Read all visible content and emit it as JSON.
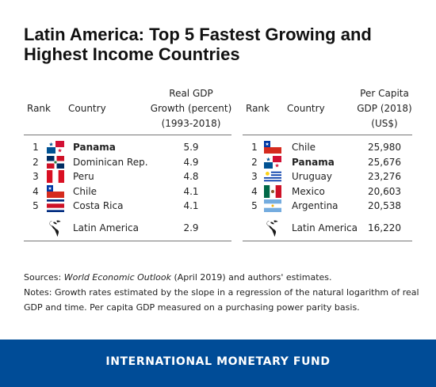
{
  "title": "Latin America: Top 5 Fastest Growing and Highest Income Countries",
  "left_table": {
    "headers": {
      "rank": "Rank",
      "country": "Country",
      "metric_lines": [
        "Real GDP",
        "Growth (percent)",
        "(1993-2018)"
      ]
    },
    "rows": [
      {
        "rank": "1",
        "country": "Panama",
        "value": "5.9",
        "flag": "panama-flag",
        "bold": true
      },
      {
        "rank": "2",
        "country": "Dominican Rep.",
        "value": "4.9",
        "flag": "dominican-republic-flag",
        "bold": false
      },
      {
        "rank": "3",
        "country": "Peru",
        "value": "4.8",
        "flag": "peru-flag",
        "bold": false
      },
      {
        "rank": "4",
        "country": "Chile",
        "value": "4.1",
        "flag": "chile-flag",
        "bold": false
      },
      {
        "rank": "5",
        "country": "Costa Rica",
        "value": "4.1",
        "flag": "costa-rica-flag",
        "bold": false
      }
    ],
    "aggregate": {
      "icon": "globe-americas-icon",
      "country": "Latin America",
      "value": "2.9"
    }
  },
  "right_table": {
    "headers": {
      "rank": "Rank",
      "country": "Country",
      "metric_lines": [
        "Per Capita",
        "GDP (2018)",
        "(US$)"
      ]
    },
    "rows": [
      {
        "rank": "1",
        "country": "Chile",
        "value": "25,980",
        "flag": "chile-flag",
        "bold": false
      },
      {
        "rank": "2",
        "country": "Panama",
        "value": "25,676",
        "flag": "panama-flag",
        "bold": true
      },
      {
        "rank": "3",
        "country": "Uruguay",
        "value": "23,276",
        "flag": "uruguay-flag",
        "bold": false
      },
      {
        "rank": "4",
        "country": "Mexico",
        "value": "20,603",
        "flag": "mexico-flag",
        "bold": false
      },
      {
        "rank": "5",
        "country": "Argentina",
        "value": "20,538",
        "flag": "argentina-flag",
        "bold": false
      }
    ],
    "aggregate": {
      "icon": "globe-americas-icon",
      "country": "Latin America",
      "value": "16,220"
    }
  },
  "notes": {
    "sources_label": "Sources: ",
    "sources_italic": "World Economic Outlook",
    "sources_rest": " (April 2019) and authors' estimates.",
    "notes_text": "Notes: Growth rates estimated by the slope in a regression of the natural logarithm of real GDP and time. Per capita GDP measured on a purchasing power parity basis."
  },
  "footer": {
    "text": "INTERNATIONAL MONETARY FUND",
    "background": "#004c97"
  },
  "chart_data": [
    {
      "type": "table",
      "title": "",
      "columns": [
        "Rank",
        "Country",
        "Real GDP Growth (percent) (1993-2018)"
      ],
      "rows": [
        [
          1,
          "Panama",
          5.9
        ],
        [
          2,
          "Dominican Rep.",
          4.9
        ],
        [
          3,
          "Peru",
          4.8
        ],
        [
          4,
          "Chile",
          4.1
        ],
        [
          5,
          "Costa Rica",
          4.1
        ],
        [
          "",
          "Latin America",
          2.9
        ]
      ]
    },
    {
      "type": "table",
      "title": "",
      "columns": [
        "Rank",
        "Country",
        "Per Capita GDP (2018) (US$)"
      ],
      "rows": [
        [
          1,
          "Chile",
          25980
        ],
        [
          2,
          "Panama",
          25676
        ],
        [
          3,
          "Uruguay",
          23276
        ],
        [
          4,
          "Mexico",
          20603
        ],
        [
          5,
          "Argentina",
          20538
        ],
        [
          "",
          "Latin America",
          16220
        ]
      ]
    }
  ]
}
